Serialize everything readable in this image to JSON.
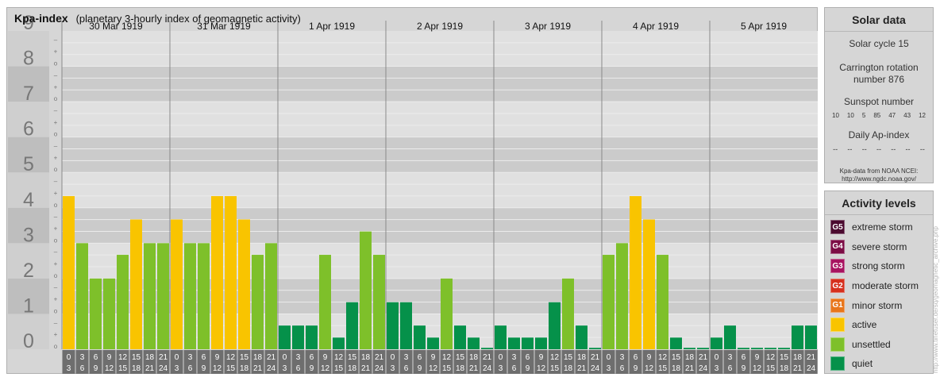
{
  "header": {
    "title": "Kpa-index",
    "subtitle": "(planetary 3-hourly index of geomagnetic activity)"
  },
  "chart_data": {
    "type": "bar",
    "ylim": [
      0,
      9
    ],
    "y_major_labels": [
      "0",
      "1",
      "2",
      "3",
      "4",
      "5",
      "6",
      "7",
      "8",
      "9"
    ],
    "y_minor_labels": [
      "o",
      "+",
      "–"
    ],
    "days": [
      "30 Mar 1919",
      "31 Mar 1919",
      "1 Apr 1919",
      "2 Apr 1919",
      "3 Apr 1919",
      "4 Apr 1919",
      "5 Apr 1919"
    ],
    "interval_labels": [
      [
        "0",
        "3"
      ],
      [
        "3",
        "6"
      ],
      [
        "6",
        "9"
      ],
      [
        "9",
        "12"
      ],
      [
        "12",
        "15"
      ],
      [
        "15",
        "18"
      ],
      [
        "18",
        "21"
      ],
      [
        "21",
        "24"
      ]
    ],
    "values": [
      [
        4.33,
        3.0,
        2.0,
        2.0,
        2.67,
        3.67,
        3.0,
        3.0
      ],
      [
        3.67,
        3.0,
        3.0,
        4.33,
        4.33,
        3.67,
        2.67,
        3.0
      ],
      [
        0.67,
        0.67,
        0.67,
        2.67,
        0.33,
        1.33,
        3.33,
        2.67
      ],
      [
        1.33,
        1.33,
        0.67,
        0.33,
        2.0,
        0.67,
        0.33,
        0.0
      ],
      [
        0.67,
        0.33,
        0.33,
        0.33,
        1.33,
        2.0,
        0.67,
        0.0
      ],
      [
        2.67,
        3.0,
        4.33,
        3.67,
        2.67,
        0.33,
        0.0,
        0.0
      ],
      [
        0.33,
        0.67,
        0.0,
        0.0,
        0.0,
        0.0,
        0.67,
        0.67
      ]
    ],
    "colors": {
      "quiet": "#05914a",
      "unsettled": "#7ec02a",
      "active": "#f9c400"
    }
  },
  "solar": {
    "title": "Solar data",
    "cycle": "Solar cycle 15",
    "carrington_line1": "Carrington rotation",
    "carrington_line2": "number 876",
    "sunspot_label": "Sunspot number",
    "sunspot_values": [
      "10",
      "10",
      "5",
      "85",
      "47",
      "43",
      "12"
    ],
    "ap_label": "Daily Ap-index",
    "ap_values": [
      "--",
      "--",
      "--",
      "--",
      "--",
      "--",
      "--"
    ],
    "source_line1": "Kpa-data from NOAA NCEI:",
    "source_line2": "http://www.ngdc.noaa.gov/"
  },
  "activity": {
    "title": "Activity levels",
    "levels": [
      {
        "badge": "G5",
        "label": "extreme storm",
        "color": "#4b0a2f"
      },
      {
        "badge": "G4",
        "label": "severe storm",
        "color": "#7c0d45"
      },
      {
        "badge": "G3",
        "label": "strong storm",
        "color": "#a81460"
      },
      {
        "badge": "G2",
        "label": "moderate storm",
        "color": "#d6301e"
      },
      {
        "badge": "G1",
        "label": "minor storm",
        "color": "#e8761c"
      },
      {
        "badge": "",
        "label": "active",
        "color": "#f9c400"
      },
      {
        "badge": "",
        "label": "unsettled",
        "color": "#7ec02a"
      },
      {
        "badge": "",
        "label": "quiet",
        "color": "#05914a"
      }
    ]
  },
  "watermark": "http://www.tinetuser.de/sq/geomagnetic_archive.php"
}
